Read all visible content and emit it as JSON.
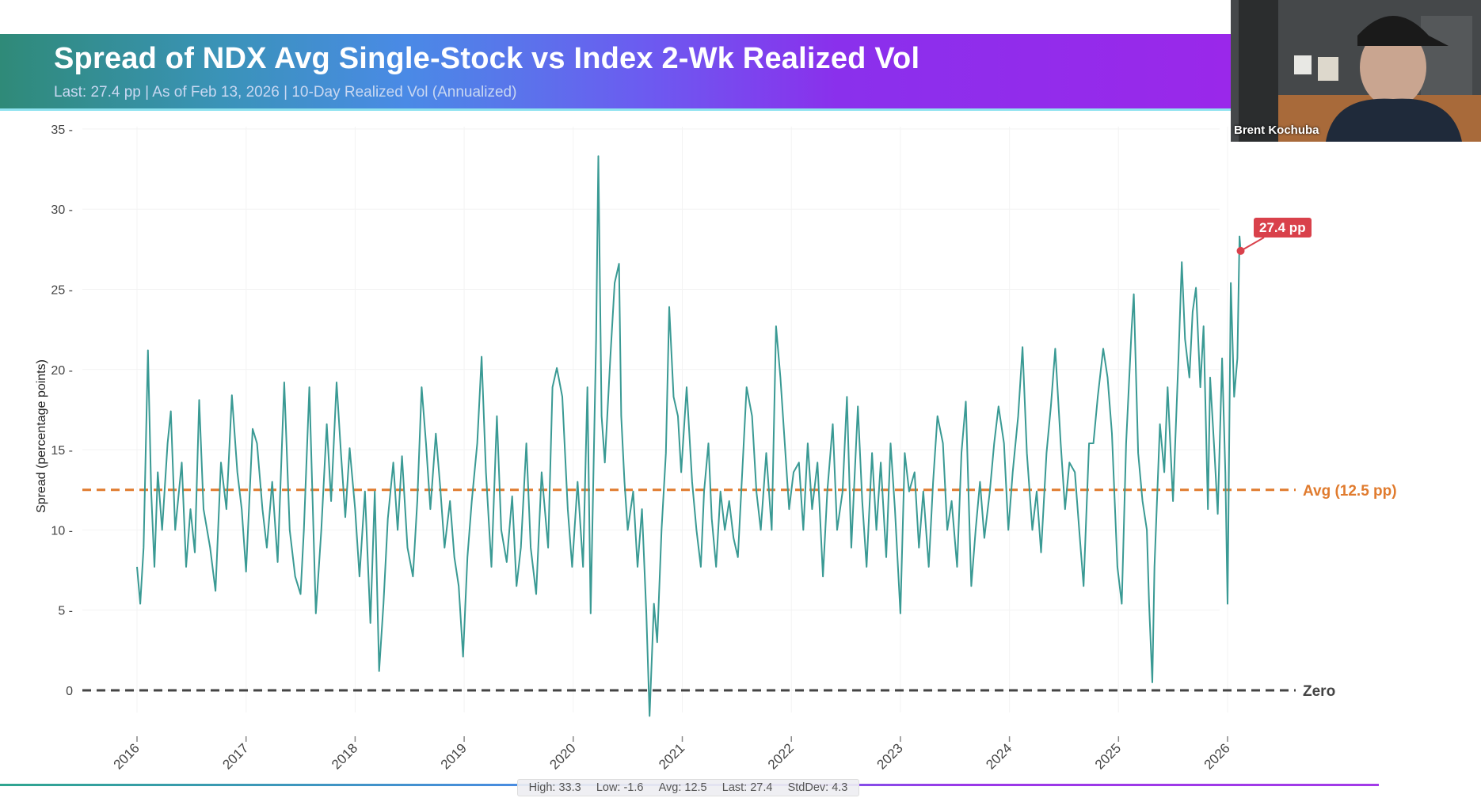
{
  "header": {
    "title": "Spread of NDX Avg Single-Stock vs Index 2-Wk Realized Vol",
    "subtitle": "Last: 27.4 pp | As of Feb 13, 2026 | 10-Day Realized Vol (Annualized)"
  },
  "webcam": {
    "name": "Brent Kochuba"
  },
  "stats": {
    "high": "High: 33.3",
    "low": "Low: -1.6",
    "avg": "Avg: 12.5",
    "last": "Last: 27.4",
    "stddev": "StdDev: 4.3"
  },
  "chart_data": {
    "type": "line",
    "title": "Spread of NDX Avg Single-Stock vs Index 2-Wk Realized Vol",
    "xlabel": "",
    "ylabel": "Spread (percentage points)",
    "ylim": [
      -2,
      35
    ],
    "xlim": [
      2016,
      2026.2
    ],
    "yticks": [
      0,
      5,
      10,
      15,
      20,
      25,
      30,
      35
    ],
    "ytick_labels": [
      "0",
      "5 -",
      "10 -",
      "15 -",
      "20 -",
      "25 -",
      "30 -",
      "35 -"
    ],
    "xticks": [
      2016,
      2017,
      2018,
      2019,
      2020,
      2021,
      2022,
      2023,
      2024,
      2025,
      2026
    ],
    "xtick_labels": [
      "2016",
      "2017",
      "2018",
      "2019",
      "2020",
      "2021",
      "2022",
      "2023",
      "2024",
      "2025",
      "2026"
    ],
    "grid": true,
    "line_color": "#3a9a94",
    "reference_lines": [
      {
        "label": "Avg (12.5 pp)",
        "y": 12.5,
        "color": "#e07b2e",
        "style": "dashed"
      },
      {
        "label": "Zero",
        "y": 0,
        "color": "#444444",
        "style": "dashed"
      }
    ],
    "annotation": {
      "label": "27.4 pp",
      "x": 2026.12,
      "y": 27.4,
      "color": "#d9414b"
    },
    "points": [
      [
        2016.0,
        7.7
      ],
      [
        2016.03,
        5.4
      ],
      [
        2016.06,
        8.9
      ],
      [
        2016.1,
        21.2
      ],
      [
        2016.13,
        12.4
      ],
      [
        2016.16,
        7.7
      ],
      [
        2016.19,
        13.6
      ],
      [
        2016.23,
        10
      ],
      [
        2016.28,
        15.4
      ],
      [
        2016.31,
        17.4
      ],
      [
        2016.35,
        10
      ],
      [
        2016.41,
        14.2
      ],
      [
        2016.45,
        7.7
      ],
      [
        2016.49,
        11.3
      ],
      [
        2016.53,
        8.6
      ],
      [
        2016.57,
        18.1
      ],
      [
        2016.61,
        11.3
      ],
      [
        2016.67,
        8.9
      ],
      [
        2016.72,
        6.2
      ],
      [
        2016.77,
        14.2
      ],
      [
        2016.82,
        11.3
      ],
      [
        2016.87,
        18.4
      ],
      [
        2016.92,
        13.6
      ],
      [
        2016.96,
        11.3
      ],
      [
        2017.0,
        7.4
      ],
      [
        2017.06,
        16.3
      ],
      [
        2017.1,
        15.4
      ],
      [
        2017.15,
        11.3
      ],
      [
        2017.19,
        8.9
      ],
      [
        2017.24,
        13
      ],
      [
        2017.29,
        8
      ],
      [
        2017.35,
        19.2
      ],
      [
        2017.4,
        10
      ],
      [
        2017.45,
        7.1
      ],
      [
        2017.5,
        6
      ],
      [
        2017.53,
        10
      ],
      [
        2017.58,
        18.9
      ],
      [
        2017.64,
        4.8
      ],
      [
        2017.69,
        10
      ],
      [
        2017.74,
        16.6
      ],
      [
        2017.78,
        11.8
      ],
      [
        2017.83,
        19.2
      ],
      [
        2017.87,
        14.8
      ],
      [
        2017.91,
        10.8
      ],
      [
        2017.95,
        15.1
      ],
      [
        2018.0,
        11.3
      ],
      [
        2018.04,
        7.1
      ],
      [
        2018.09,
        12.4
      ],
      [
        2018.14,
        4.2
      ],
      [
        2018.18,
        12.4
      ],
      [
        2018.22,
        1.2
      ],
      [
        2018.26,
        5.4
      ],
      [
        2018.3,
        10.7
      ],
      [
        2018.35,
        14.2
      ],
      [
        2018.39,
        10
      ],
      [
        2018.43,
        14.6
      ],
      [
        2018.48,
        8.9
      ],
      [
        2018.53,
        7.1
      ],
      [
        2018.57,
        11.8
      ],
      [
        2018.61,
        18.9
      ],
      [
        2018.65,
        15.4
      ],
      [
        2018.69,
        11.3
      ],
      [
        2018.74,
        16
      ],
      [
        2018.78,
        12.7
      ],
      [
        2018.82,
        8.9
      ],
      [
        2018.87,
        11.8
      ],
      [
        2018.91,
        8.3
      ],
      [
        2018.95,
        6.5
      ],
      [
        2018.99,
        2.1
      ],
      [
        2019.03,
        8.3
      ],
      [
        2019.07,
        11.8
      ],
      [
        2019.12,
        15.4
      ],
      [
        2019.16,
        20.8
      ],
      [
        2019.2,
        13.6
      ],
      [
        2019.25,
        7.7
      ],
      [
        2019.3,
        17.1
      ],
      [
        2019.34,
        10
      ],
      [
        2019.39,
        8
      ],
      [
        2019.44,
        12.1
      ],
      [
        2019.48,
        6.5
      ],
      [
        2019.52,
        8.9
      ],
      [
        2019.57,
        15.4
      ],
      [
        2019.61,
        8.9
      ],
      [
        2019.66,
        6
      ],
      [
        2019.71,
        13.6
      ],
      [
        2019.77,
        8.9
      ],
      [
        2019.81,
        18.9
      ],
      [
        2019.85,
        20.1
      ],
      [
        2019.9,
        18.3
      ],
      [
        2019.95,
        11.3
      ],
      [
        2019.99,
        7.7
      ],
      [
        2020.04,
        13
      ],
      [
        2020.09,
        7.7
      ],
      [
        2020.13,
        18.9
      ],
      [
        2020.16,
        4.8
      ],
      [
        2020.21,
        21.9
      ],
      [
        2020.23,
        33.3
      ],
      [
        2020.26,
        17.1
      ],
      [
        2020.29,
        14.2
      ],
      [
        2020.34,
        20.7
      ],
      [
        2020.38,
        25.4
      ],
      [
        2020.42,
        26.6
      ],
      [
        2020.44,
        17.1
      ],
      [
        2020.47,
        13
      ],
      [
        2020.5,
        10
      ],
      [
        2020.55,
        12.4
      ],
      [
        2020.59,
        7.7
      ],
      [
        2020.63,
        11.3
      ],
      [
        2020.67,
        4.8
      ],
      [
        2020.7,
        -1.6
      ],
      [
        2020.74,
        5.4
      ],
      [
        2020.77,
        3
      ],
      [
        2020.81,
        10
      ],
      [
        2020.85,
        14.8
      ],
      [
        2020.88,
        23.9
      ],
      [
        2020.92,
        18.3
      ],
      [
        2020.96,
        17.1
      ],
      [
        2020.99,
        13.6
      ],
      [
        2021.04,
        18.9
      ],
      [
        2021.09,
        13
      ],
      [
        2021.13,
        10
      ],
      [
        2021.17,
        7.7
      ],
      [
        2021.2,
        12.4
      ],
      [
        2021.24,
        15.4
      ],
      [
        2021.27,
        10.7
      ],
      [
        2021.31,
        7.7
      ],
      [
        2021.35,
        12.4
      ],
      [
        2021.39,
        10
      ],
      [
        2021.43,
        11.8
      ],
      [
        2021.47,
        9.5
      ],
      [
        2021.51,
        8.3
      ],
      [
        2021.55,
        13.6
      ],
      [
        2021.59,
        18.9
      ],
      [
        2021.64,
        17.1
      ],
      [
        2021.68,
        12.4
      ],
      [
        2021.72,
        10
      ],
      [
        2021.77,
        14.8
      ],
      [
        2021.82,
        10
      ],
      [
        2021.86,
        22.7
      ],
      [
        2021.9,
        19.5
      ],
      [
        2021.94,
        15.4
      ],
      [
        2021.98,
        11.3
      ],
      [
        2022.02,
        13.6
      ],
      [
        2022.07,
        14.2
      ],
      [
        2022.11,
        10
      ],
      [
        2022.15,
        15.4
      ],
      [
        2022.19,
        11.3
      ],
      [
        2022.24,
        14.2
      ],
      [
        2022.29,
        7.1
      ],
      [
        2022.33,
        12.4
      ],
      [
        2022.38,
        16.6
      ],
      [
        2022.42,
        10
      ],
      [
        2022.47,
        12.4
      ],
      [
        2022.51,
        18.3
      ],
      [
        2022.55,
        8.9
      ],
      [
        2022.61,
        17.7
      ],
      [
        2022.65,
        11.8
      ],
      [
        2022.69,
        7.7
      ],
      [
        2022.74,
        14.8
      ],
      [
        2022.78,
        10
      ],
      [
        2022.82,
        14.2
      ],
      [
        2022.87,
        8.3
      ],
      [
        2022.91,
        15.4
      ],
      [
        2022.95,
        11.3
      ],
      [
        2023.0,
        4.8
      ],
      [
        2023.04,
        14.8
      ],
      [
        2023.08,
        12.4
      ],
      [
        2023.13,
        13.6
      ],
      [
        2023.17,
        8.9
      ],
      [
        2023.21,
        12.4
      ],
      [
        2023.26,
        7.7
      ],
      [
        2023.3,
        13
      ],
      [
        2023.34,
        17.1
      ],
      [
        2023.39,
        15.4
      ],
      [
        2023.43,
        10
      ],
      [
        2023.47,
        11.8
      ],
      [
        2023.52,
        7.7
      ],
      [
        2023.56,
        14.8
      ],
      [
        2023.6,
        18
      ],
      [
        2023.65,
        6.5
      ],
      [
        2023.69,
        10
      ],
      [
        2023.73,
        13
      ],
      [
        2023.77,
        9.5
      ],
      [
        2023.82,
        12.4
      ],
      [
        2023.86,
        15.4
      ],
      [
        2023.9,
        17.7
      ],
      [
        2023.95,
        15.4
      ],
      [
        2023.99,
        10
      ],
      [
        2024.03,
        13.6
      ],
      [
        2024.08,
        17.1
      ],
      [
        2024.12,
        21.4
      ],
      [
        2024.16,
        14.8
      ],
      [
        2024.21,
        10
      ],
      [
        2024.25,
        12.4
      ],
      [
        2024.29,
        8.6
      ],
      [
        2024.34,
        14.8
      ],
      [
        2024.38,
        17.7
      ],
      [
        2024.42,
        21.3
      ],
      [
        2024.47,
        15.4
      ],
      [
        2024.51,
        11.3
      ],
      [
        2024.55,
        14.2
      ],
      [
        2024.6,
        13.6
      ],
      [
        2024.64,
        10
      ],
      [
        2024.68,
        6.5
      ],
      [
        2024.73,
        15.4
      ],
      [
        2024.77,
        15.4
      ],
      [
        2024.81,
        18.3
      ],
      [
        2024.86,
        21.3
      ],
      [
        2024.9,
        19.5
      ],
      [
        2024.94,
        16
      ],
      [
        2024.99,
        7.7
      ],
      [
        2025.03,
        5.4
      ],
      [
        2025.07,
        15.4
      ],
      [
        2025.12,
        22.5
      ],
      [
        2025.14,
        24.7
      ],
      [
        2025.18,
        14.8
      ],
      [
        2025.22,
        11.8
      ],
      [
        2025.26,
        10
      ],
      [
        2025.28,
        5.4
      ],
      [
        2025.31,
        0.5
      ],
      [
        2025.33,
        7.7
      ],
      [
        2025.38,
        16.6
      ],
      [
        2025.42,
        13.6
      ],
      [
        2025.45,
        18.9
      ],
      [
        2025.5,
        11.8
      ],
      [
        2025.55,
        20.7
      ],
      [
        2025.58,
        26.7
      ],
      [
        2025.61,
        21.9
      ],
      [
        2025.65,
        19.5
      ],
      [
        2025.68,
        23.6
      ],
      [
        2025.71,
        25.1
      ],
      [
        2025.75,
        18.9
      ],
      [
        2025.78,
        22.7
      ],
      [
        2025.82,
        11.3
      ],
      [
        2025.84,
        19.5
      ],
      [
        2025.88,
        14.8
      ],
      [
        2025.91,
        11
      ],
      [
        2025.95,
        20.7
      ],
      [
        2025.98,
        13.6
      ],
      [
        2026.0,
        5.4
      ],
      [
        2026.03,
        25.4
      ],
      [
        2026.06,
        18.3
      ],
      [
        2026.09,
        20.7
      ],
      [
        2026.11,
        28.3
      ],
      [
        2026.12,
        27.4
      ]
    ]
  }
}
